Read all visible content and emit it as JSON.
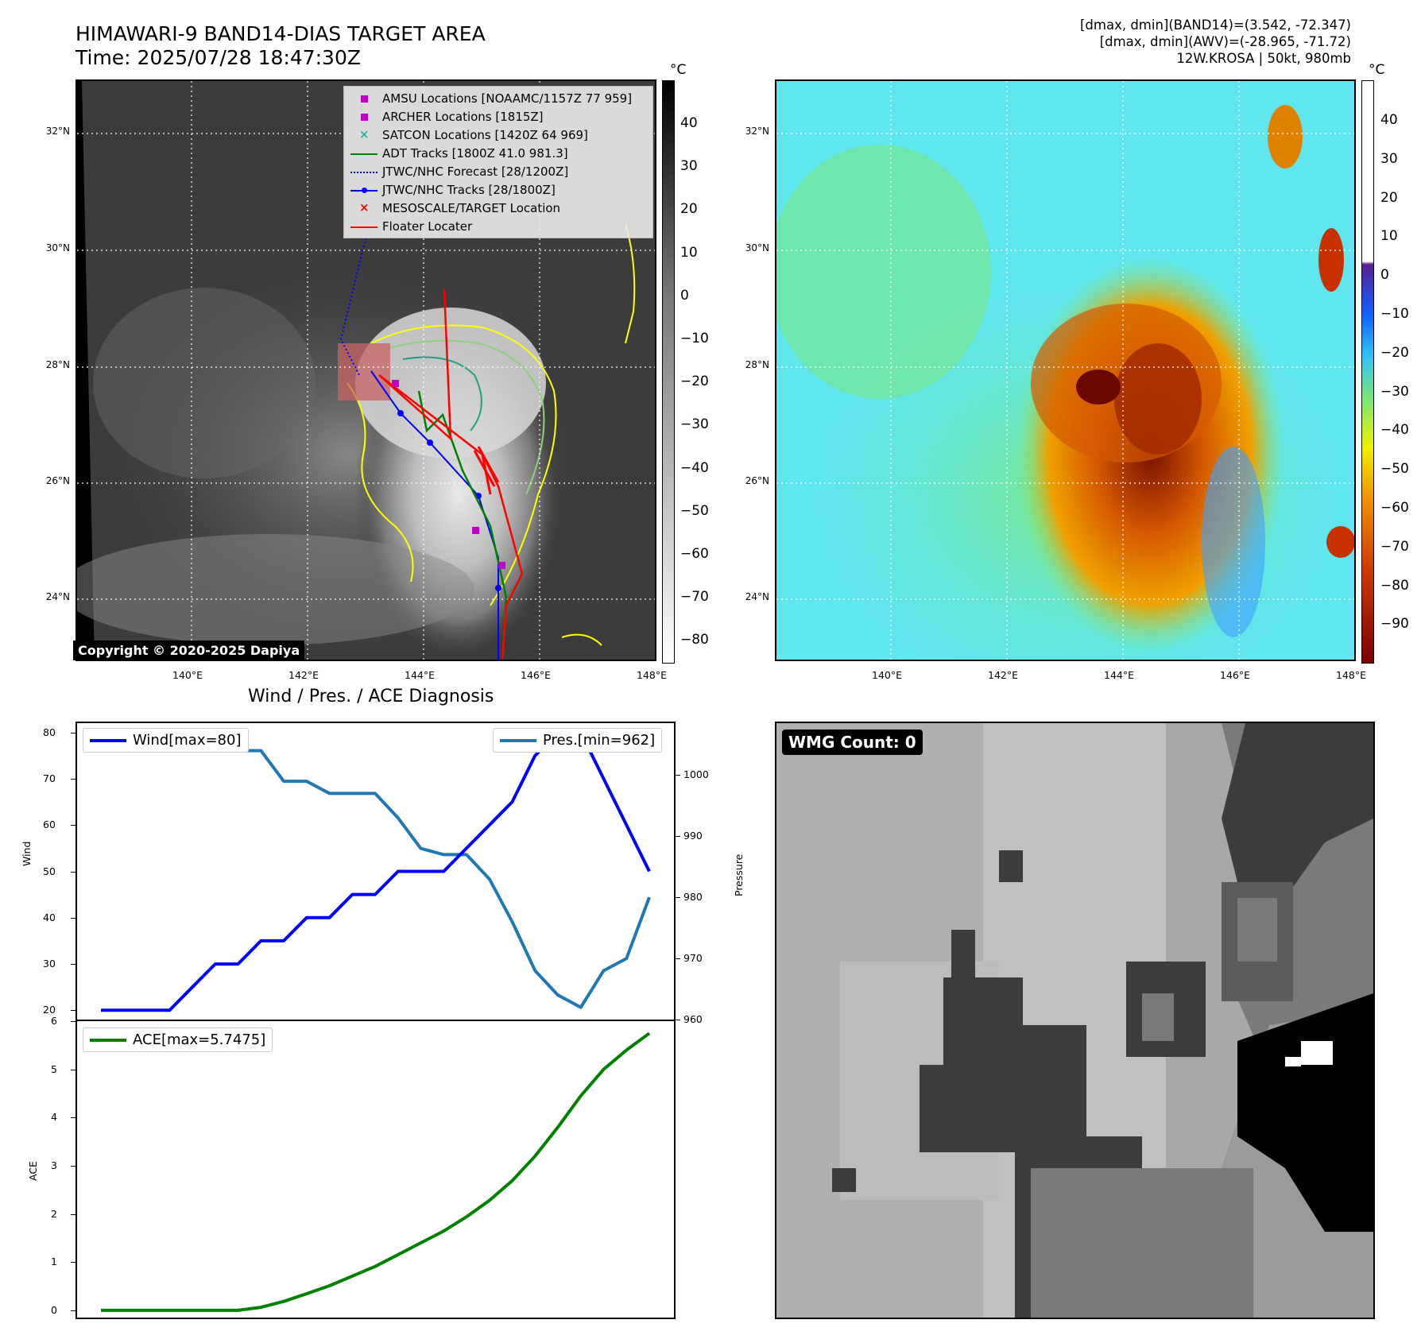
{
  "header": {
    "title_line1": "HIMAWARI-9 BAND14-DIAS TARGET AREA",
    "title_line2": "Time: 2025/07/28 18:47:30Z",
    "info_line1": "[dmax, dmin](BAND14)=(3.542, -72.347)",
    "info_line2": "[dmax, dmin](AWV)=(-28.965, -71.72)",
    "info_line3": "12W.KROSA | 50kt, 980mb"
  },
  "map": {
    "lat_labels": [
      "32°N",
      "30°N",
      "28°N",
      "26°N",
      "24°N"
    ],
    "lon_labels": [
      "140°E",
      "142°E",
      "144°E",
      "146°E",
      "148°E"
    ],
    "copyright": "Copyright © 2020-2025 Dapiya",
    "legend": [
      {
        "label": "AMSU Locations [NOAAMC/1157Z 77 959]",
        "symbol": "square",
        "color": "#c000c0"
      },
      {
        "label": "ARCHER Locations [1815Z]",
        "symbol": "square",
        "color": "#c000c0"
      },
      {
        "label": "SATCON Locations [1420Z 64 969]",
        "symbol": "x",
        "color": "#20b2aa"
      },
      {
        "label": "ADT Tracks [1800Z 41.0 981.3]",
        "symbol": "line",
        "color": "#008000"
      },
      {
        "label": "JTWC/NHC Forecast [28/1200Z]",
        "symbol": "dotted",
        "color": "#0000ff"
      },
      {
        "label": "JTWC/NHC Tracks [28/1800Z]",
        "symbol": "line-dot",
        "color": "#0000ff"
      },
      {
        "label": "MESOSCALE/TARGET Location",
        "symbol": "x",
        "color": "#ff0000"
      },
      {
        "label": "Floater Locater",
        "symbol": "line",
        "color": "#ff0000"
      }
    ]
  },
  "colorbar_left": {
    "unit": "°C",
    "ticks": [
      "40",
      "30",
      "20",
      "10",
      "0",
      "−10",
      "−20",
      "−30",
      "−40",
      "−50",
      "−60",
      "−70",
      "−80"
    ]
  },
  "colorbar_right": {
    "unit": "°C",
    "ticks": [
      "40",
      "30",
      "20",
      "10",
      "0",
      "−10",
      "−20",
      "−30",
      "−40",
      "−50",
      "−60",
      "−70",
      "−80",
      "−90"
    ]
  },
  "diagnosis": {
    "title": "Wind / Pres. / ACE Diagnosis"
  },
  "wmg": {
    "label": "WMG Count: 0"
  },
  "chart_data": [
    {
      "type": "line",
      "x": [
        0,
        1,
        2,
        3,
        4,
        5,
        6,
        7,
        8,
        9,
        10,
        11,
        12,
        13,
        14,
        15,
        16,
        17,
        18,
        19,
        20,
        21,
        22,
        23,
        24
      ],
      "series": [
        {
          "name": "Wind[max=80]",
          "axis": "left",
          "color": "#0000ff",
          "values": [
            20,
            20,
            20,
            20,
            25,
            30,
            30,
            35,
            35,
            40,
            40,
            45,
            45,
            50,
            50,
            50,
            55,
            60,
            65,
            75,
            80,
            80,
            70,
            60,
            50
          ]
        },
        {
          "name": "Pres.[min=962]",
          "axis": "right",
          "color": "#1f77b4",
          "values": [
            1007,
            1007,
            1007,
            1007,
            1005,
            1005,
            1004,
            1004,
            999,
            999,
            997,
            997,
            997,
            993,
            988,
            987,
            987,
            983,
            976,
            968,
            964,
            962,
            968,
            970,
            980
          ]
        }
      ],
      "ylabel": "Wind",
      "ylabel_right": "Pressure",
      "ylim": [
        18,
        82
      ],
      "ylim_right": [
        960,
        1008.5
      ],
      "yticks": [
        20,
        30,
        40,
        50,
        60,
        70,
        80
      ],
      "yticks_right": [
        960,
        970,
        980,
        990,
        1000
      ],
      "legend_positions": [
        "top-left",
        "top-right"
      ]
    },
    {
      "type": "line",
      "x": [
        0,
        1,
        2,
        3,
        4,
        5,
        6,
        7,
        8,
        9,
        10,
        11,
        12,
        13,
        14,
        15,
        16,
        17,
        18,
        19,
        20,
        21,
        22,
        23,
        24
      ],
      "series": [
        {
          "name": "ACE[max=5.7475]",
          "color": "#008000",
          "values": [
            0,
            0,
            0,
            0,
            0,
            0,
            0,
            0.0625,
            0.185,
            0.345,
            0.51,
            0.71,
            0.91,
            1.155,
            1.4,
            1.645,
            1.94,
            2.28,
            2.69,
            3.2,
            3.8,
            4.45,
            5.0,
            5.4,
            5.7475
          ]
        }
      ],
      "ylabel": "ACE",
      "ylim": [
        -0.15,
        6
      ],
      "yticks": [
        0,
        1,
        2,
        3,
        4,
        5,
        6
      ],
      "legend_positions": [
        "top-left"
      ]
    }
  ]
}
